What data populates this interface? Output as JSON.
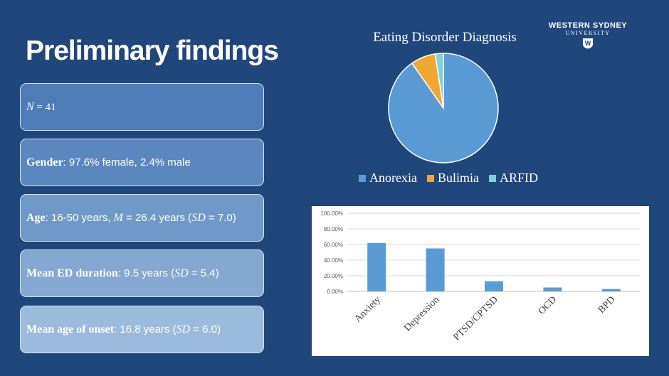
{
  "slide": {
    "title": "Preliminary findings",
    "logo": {
      "line1": "WESTERN SYDNEY",
      "line2": "UNIVERSITY",
      "mark": "W"
    }
  },
  "findings": {
    "n": {
      "label": "N",
      "rest": " = 41"
    },
    "gender": {
      "label": "Gender",
      "rest": ": 97.6% female, 2.4% male"
    },
    "age": {
      "label": "Age",
      "pre": ": 16-50 years, ",
      "m": "M",
      "mid": " = 26.4 years (",
      "sd": "SD",
      "post": " = 7.0)"
    },
    "duration": {
      "label": "Mean ED duration",
      "pre": ": 9.5 years (",
      "sd": "SD",
      "post": " = 5.4)"
    },
    "onset": {
      "label": "Mean age of onset",
      "pre": ": 16.8 years (",
      "sd": "SD",
      "post": " = 6.0)"
    }
  },
  "chart_data": [
    {
      "type": "pie",
      "title": "Eating Disorder Diagnosis",
      "categories": [
        "Anorexia",
        "Bulimia",
        "ARFID"
      ],
      "values": [
        90.2,
        7.3,
        2.4
      ],
      "colors": [
        "#5b9bd5",
        "#f0a830",
        "#7fd3d8"
      ],
      "legend": "bottom"
    },
    {
      "type": "bar",
      "title": "",
      "categories": [
        "Anxiety",
        "Depression",
        "PTSD/CPTSD",
        "OCD",
        "BPD"
      ],
      "values": [
        62,
        55,
        13,
        5,
        3
      ],
      "ylim": [
        0,
        100
      ],
      "yticks": [
        "0.00%",
        "20.00%",
        "40.00%",
        "60.00%",
        "80.00%",
        "100.00%"
      ],
      "ytick_values": [
        0,
        20,
        40,
        60,
        80,
        100
      ],
      "color": "#5b9bd5",
      "grid": true
    }
  ]
}
